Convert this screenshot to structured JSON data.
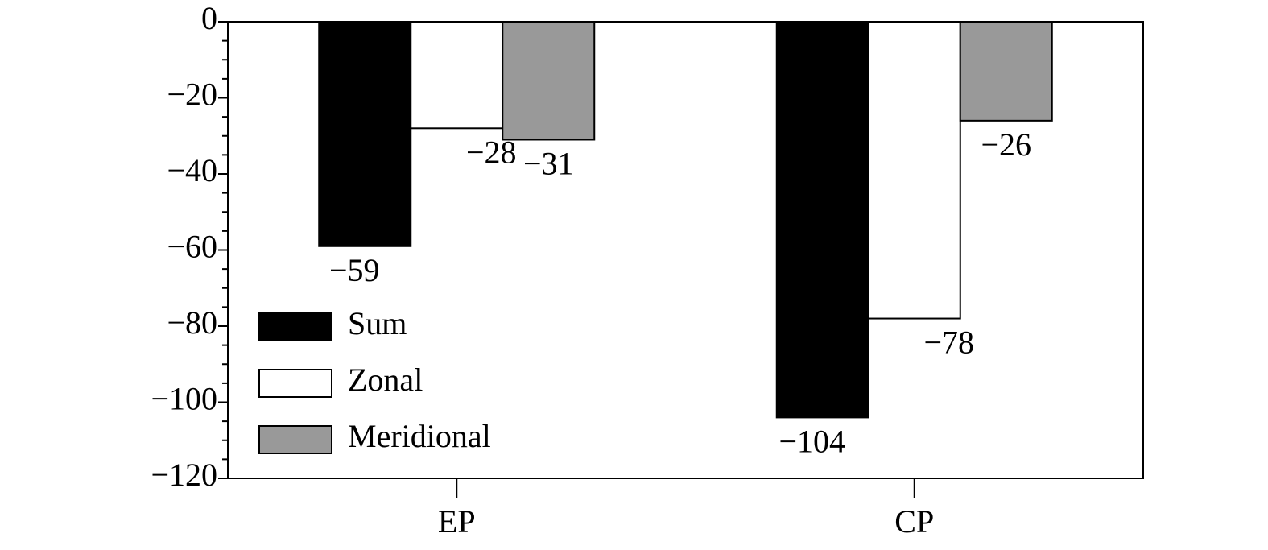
{
  "chart_data": {
    "type": "bar",
    "categories": [
      "EP",
      "CP"
    ],
    "series": [
      {
        "name": "Sum",
        "color": "#000000",
        "values": [
          -59,
          -104
        ],
        "value_labels": [
          "−59",
          "−104"
        ]
      },
      {
        "name": "Zonal",
        "color": "#ffffff",
        "values": [
          -28,
          -78
        ],
        "value_labels": [
          "−28",
          "−78"
        ]
      },
      {
        "name": "Meridional",
        "color": "#999999",
        "values": [
          -31,
          -26
        ],
        "value_labels": [
          "−31",
          "−26"
        ]
      }
    ],
    "ylim": [
      -120,
      0
    ],
    "yticks": [
      {
        "value": -120,
        "label": "−120"
      },
      {
        "value": -100,
        "label": "−100"
      },
      {
        "value": -80,
        "label": "−80"
      },
      {
        "value": -60,
        "label": "−60"
      },
      {
        "value": -40,
        "label": "−40"
      },
      {
        "value": -20,
        "label": "−20"
      },
      0
    ],
    "minor_yticks": [
      -115,
      -110,
      -105,
      -95,
      -90,
      -85,
      -75,
      -70,
      -65,
      -55,
      -50,
      -45,
      -35,
      -30,
      -25,
      -15,
      -10,
      -5
    ],
    "grid": false,
    "legend": "lower left"
  }
}
